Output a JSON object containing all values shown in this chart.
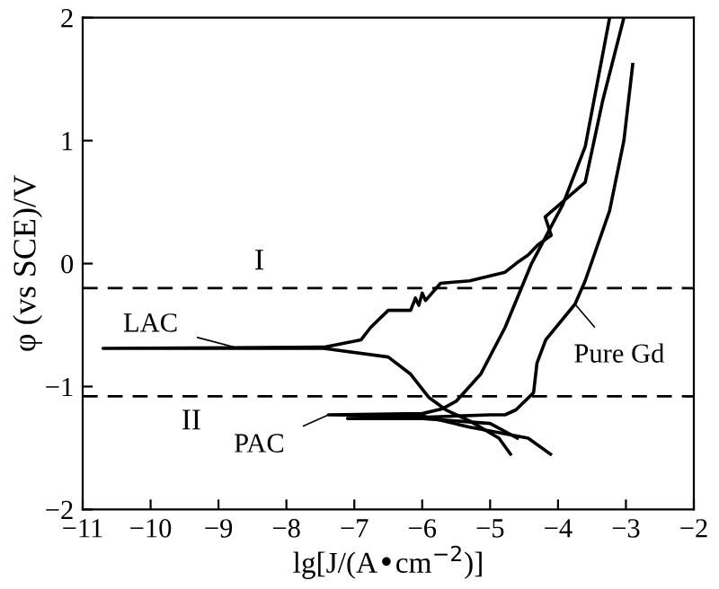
{
  "chart_data": {
    "type": "line",
    "xlabel": "lg[J/(A•cm$^{−2}$)]",
    "ylabel": "φ (vs SCE)/V",
    "xlim": [
      -11,
      -2
    ],
    "ylim": [
      -2,
      2
    ],
    "xticks": [
      {
        "value": -11,
        "label": "−11"
      },
      {
        "value": -10,
        "label": "−10"
      },
      {
        "value": -9,
        "label": "−9"
      },
      {
        "value": -8,
        "label": "−8"
      },
      {
        "value": -7,
        "label": "−7"
      },
      {
        "value": -6,
        "label": "−6"
      },
      {
        "value": -5,
        "label": "−5"
      },
      {
        "value": -4,
        "label": "−4"
      },
      {
        "value": -3,
        "label": "−3"
      },
      {
        "value": -2,
        "label": "−2"
      }
    ],
    "yticks": [
      {
        "value": -2,
        "label": "−2"
      },
      {
        "value": -1,
        "label": "−1"
      },
      0,
      1,
      2
    ],
    "series": [
      {
        "name": "LAC",
        "color": "#000000",
        "x": [
          -4.7,
          -4.87,
          -5.3,
          -5.65,
          -5.9,
          -6.17,
          -6.5,
          -7.45,
          -10.7,
          -7.45,
          -6.9,
          -6.76,
          -6.5,
          -6.17,
          -6.1,
          -6.05,
          -6.0,
          -5.95,
          -5.73,
          -5.3,
          -4.78,
          -4.62,
          -4.44,
          -4.3,
          -4.1,
          -4.19,
          -3.6,
          -3.34,
          -3.03
        ],
        "values": [
          -1.55,
          -1.42,
          -1.28,
          -1.19,
          -1.09,
          -0.9,
          -0.76,
          -0.69,
          -0.69,
          -0.68,
          -0.62,
          -0.52,
          -0.38,
          -0.38,
          -0.28,
          -0.34,
          -0.24,
          -0.3,
          -0.16,
          -0.14,
          -0.07,
          0.0,
          0.07,
          0.15,
          0.23,
          0.38,
          0.66,
          1.33,
          2.0
        ]
      },
      {
        "name": "PAC",
        "color": "#000000",
        "x": [
          -4.11,
          -4.44,
          -5.3,
          -6.0,
          -7.38,
          -6.0,
          -5.7,
          -5.5,
          -5.14,
          -4.78,
          -4.39,
          -3.93,
          -3.6,
          -3.24
        ],
        "values": [
          -1.55,
          -1.42,
          -1.33,
          -1.24,
          -1.23,
          -1.22,
          -1.18,
          -1.12,
          -0.9,
          -0.52,
          0.0,
          0.48,
          0.95,
          2.0
        ]
      },
      {
        "name": "Pure Gd",
        "color": "#000000",
        "x": [
          -4.6,
          -5.0,
          -6.0,
          -7.1,
          -6.0,
          -5.0,
          -4.78,
          -4.62,
          -4.36,
          -4.31,
          -4.18,
          -3.75,
          -3.6,
          -3.24,
          -3.03,
          -2.9
        ],
        "values": [
          -1.42,
          -1.3,
          -1.26,
          -1.26,
          -1.25,
          -1.23,
          -1.23,
          -1.19,
          -1.05,
          -0.81,
          -0.62,
          -0.33,
          -0.14,
          0.43,
          1.0,
          1.62
        ]
      }
    ],
    "ref_lines": [
      {
        "axis": "y",
        "value": -0.2,
        "label": "I",
        "line_style": "dashed",
        "color": "#000000"
      },
      {
        "axis": "y",
        "value": -1.08,
        "label": "II",
        "line_style": "dashed",
        "color": "#000000"
      }
    ],
    "grid": false
  }
}
